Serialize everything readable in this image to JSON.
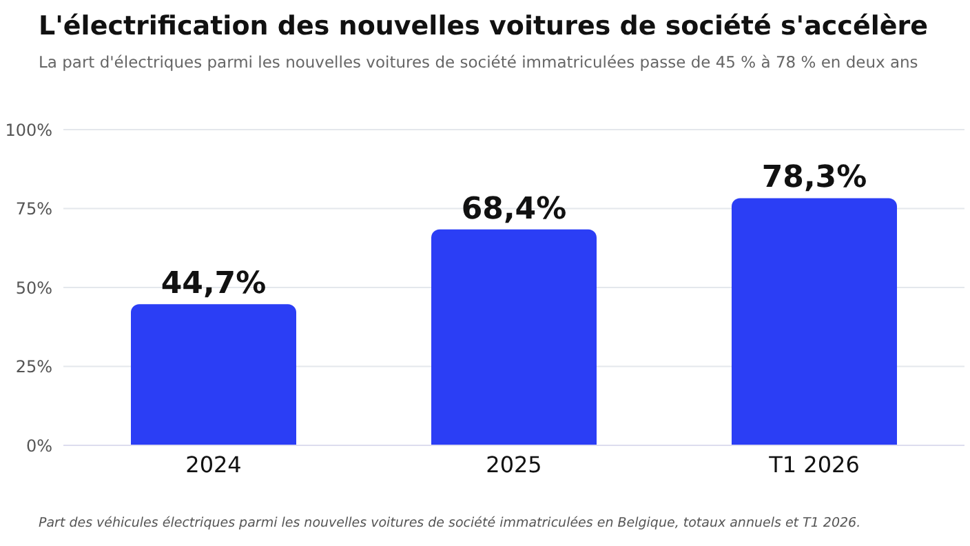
{
  "chart_data": {
    "type": "bar",
    "title": "L'électrification des nouvelles voitures de société s'accélère",
    "subtitle": "La part d'électriques parmi les nouvelles voitures de société immatriculées passe de 45 % à 78 % en deux ans",
    "categories": [
      "2024",
      "2025",
      "T1 2026"
    ],
    "values": [
      44.7,
      68.4,
      78.3
    ],
    "value_labels": [
      "44,7%",
      "68,4%",
      "78,3%"
    ],
    "color": "#2b3ef5",
    "ylim": [
      0,
      100
    ],
    "yticks": [
      {
        "value": 0,
        "label": "0%"
      },
      {
        "value": 25,
        "label": "25%"
      },
      {
        "value": 50,
        "label": "50%"
      },
      {
        "value": 75,
        "label": "75%"
      },
      {
        "value": 100,
        "label": "100%"
      }
    ],
    "grid": "y",
    "legend": false,
    "annotations": [
      "Part des véhicules électriques parmi les nouvelles voitures de société immatriculées en Belgique, totaux annuels et T1 2026."
    ]
  }
}
